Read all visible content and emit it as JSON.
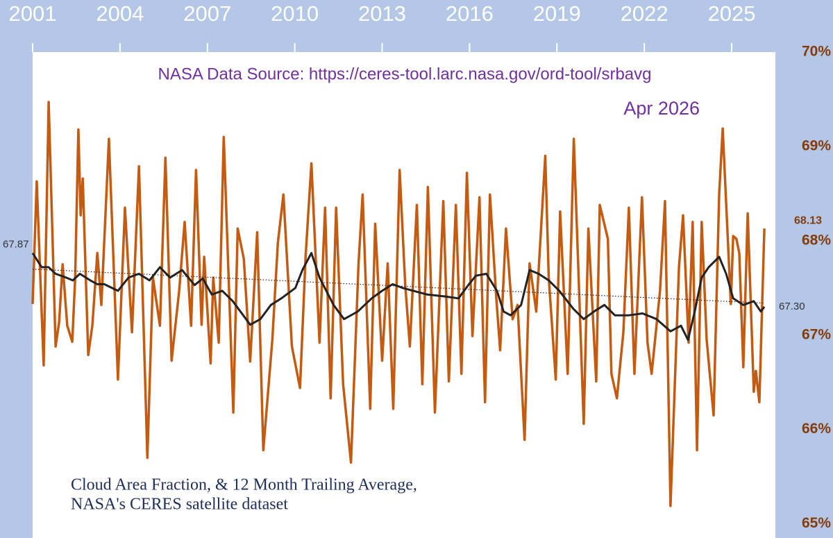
{
  "chart_data": {
    "type": "line",
    "title": "NASA Data Source: https://ceres-tool.larc.nasa.gov/ord-tool/srbavg",
    "subtitle": "Apr 2026",
    "caption": [
      "Cloud Area Fraction, & 12 Month Trailing Average,",
      "NASA's CERES satellite dataset"
    ],
    "xlim": [
      2001,
      2026.5
    ],
    "xticks": [
      2001,
      2004,
      2007,
      2010,
      2013,
      2016,
      2019,
      2022,
      2025
    ],
    "ylim": [
      64.85,
      70
    ],
    "yticks": [
      {
        "value": 65,
        "label": "65%"
      },
      {
        "value": 66,
        "label": "66%"
      },
      {
        "value": 67,
        "label": "67%"
      },
      {
        "value": 68,
        "label": "68%"
      },
      {
        "value": 69,
        "label": "69%"
      },
      {
        "value": 70,
        "label": "70%"
      }
    ],
    "series": [
      {
        "color": "#c55a11",
        "x": [
          2001.0,
          2001.14,
          2001.38,
          2001.55,
          2001.79,
          2001.91,
          2002.03,
          2002.19,
          2002.36,
          2002.46,
          2002.57,
          2002.65,
          2002.72,
          2002.91,
          2003.05,
          2003.22,
          2003.36,
          2003.62,
          2003.93,
          2004.17,
          2004.41,
          2004.65,
          2004.94,
          2005.13,
          2005.37,
          2005.56,
          2005.77,
          2006.03,
          2006.22,
          2006.44,
          2006.61,
          2006.8,
          2006.89,
          2007.11,
          2007.2,
          2007.39,
          2007.56,
          2007.89,
          2008.04,
          2008.25,
          2008.47,
          2008.71,
          2008.92,
          2009.23,
          2009.42,
          2009.61,
          2009.9,
          2010.18,
          2010.37,
          2010.57,
          2010.85,
          2011.04,
          2011.23,
          2011.42,
          2011.66,
          2011.93,
          2012.19,
          2012.33,
          2012.59,
          2012.76,
          2013.0,
          2013.19,
          2013.38,
          2013.6,
          2013.79,
          2013.95,
          2014.19,
          2014.38,
          2014.57,
          2014.81,
          2015.1,
          2015.29,
          2015.53,
          2015.72,
          2015.91,
          2016.1,
          2016.34,
          2016.53,
          2016.7,
          2016.91,
          2017.05,
          2017.25,
          2017.48,
          2017.65,
          2017.89,
          2018.06,
          2018.29,
          2018.6,
          2018.72,
          2018.96,
          2019.11,
          2019.37,
          2019.58,
          2019.92,
          2020.08,
          2020.35,
          2020.47,
          2020.75,
          2020.87,
          2021.06,
          2021.28,
          2021.47,
          2021.66,
          2021.92,
          2022.11,
          2022.25,
          2022.54,
          2022.71,
          2022.9,
          2023.19,
          2023.33,
          2023.52,
          2023.66,
          2023.81,
          2023.97,
          2024.14,
          2024.38,
          2024.57,
          2024.69,
          2024.97,
          2025.05,
          2025.16,
          2025.26,
          2025.4,
          2025.55,
          2025.76,
          2025.83,
          2025.95,
          2026.12
        ],
        "values": [
          67.33,
          68.63,
          66.68,
          69.47,
          66.88,
          67.14,
          67.75,
          67.1,
          66.93,
          67.61,
          69.18,
          68.27,
          68.66,
          66.79,
          67.1,
          67.87,
          67.32,
          69.08,
          66.53,
          68.35,
          67.03,
          68.79,
          65.7,
          67.61,
          67.1,
          68.88,
          66.73,
          67.47,
          68.2,
          67.1,
          68.75,
          67.11,
          67.83,
          66.7,
          67.61,
          66.92,
          69.1,
          66.18,
          68.13,
          67.81,
          66.72,
          68.09,
          65.78,
          66.95,
          67.98,
          68.49,
          66.88,
          66.44,
          67.83,
          68.82,
          66.92,
          68.35,
          66.33,
          68.35,
          66.48,
          65.65,
          67.76,
          68.49,
          66.22,
          68.18,
          66.73,
          67.76,
          66.22,
          68.75,
          67.54,
          66.88,
          68.38,
          66.48,
          68.57,
          66.18,
          68.42,
          66.51,
          68.38,
          66.59,
          68.72,
          66.99,
          68.46,
          66.29,
          68.49,
          67.43,
          66.84,
          68.13,
          67.17,
          67.32,
          65.89,
          67.76,
          67.25,
          68.9,
          67.61,
          66.53,
          68.31,
          66.59,
          69.08,
          66.06,
          68.13,
          66.51,
          68.38,
          68.02,
          66.59,
          66.33,
          67.03,
          68.35,
          66.59,
          68.46,
          66.92,
          66.59,
          67.47,
          68.42,
          65.19,
          67.72,
          68.27,
          66.92,
          68.2,
          65.78,
          68.2,
          66.95,
          66.15,
          68.49,
          69.19,
          67.33,
          68.05,
          68.02,
          67.87,
          66.66,
          68.29,
          66.4,
          66.62,
          66.29,
          68.13
        ]
      },
      {
        "color": "#222222",
        "x": [
          2001.0,
          2001.31,
          2001.55,
          2001.79,
          2002.15,
          2002.38,
          2002.62,
          2002.98,
          2003.22,
          2003.46,
          2003.93,
          2004.29,
          2004.65,
          2005.01,
          2005.37,
          2005.72,
          2006.13,
          2006.56,
          2006.84,
          2007.15,
          2007.51,
          2007.87,
          2008.23,
          2008.47,
          2008.82,
          2009.18,
          2009.54,
          2010.02,
          2010.26,
          2010.57,
          2010.85,
          2011.33,
          2011.69,
          2012.16,
          2012.64,
          2013.0,
          2013.36,
          2013.71,
          2014.07,
          2014.55,
          2015.15,
          2015.62,
          2015.98,
          2016.22,
          2016.58,
          2016.94,
          2017.17,
          2017.41,
          2017.77,
          2018.06,
          2018.37,
          2018.72,
          2019.08,
          2019.56,
          2019.92,
          2020.27,
          2020.63,
          2020.99,
          2021.47,
          2021.94,
          2022.42,
          2022.9,
          2023.26,
          2023.5,
          2023.73,
          2023.97,
          2024.21,
          2024.57,
          2024.81,
          2025.05,
          2025.4,
          2025.76,
          2026.0,
          2026.12
        ],
        "values": [
          67.87,
          67.72,
          67.72,
          67.65,
          67.61,
          67.58,
          67.65,
          67.58,
          67.54,
          67.54,
          67.47,
          67.61,
          67.65,
          67.58,
          67.72,
          67.61,
          67.69,
          67.53,
          67.6,
          67.43,
          67.47,
          67.36,
          67.21,
          67.11,
          67.17,
          67.32,
          67.39,
          67.5,
          67.69,
          67.87,
          67.61,
          67.32,
          67.17,
          67.25,
          67.39,
          67.47,
          67.54,
          67.5,
          67.47,
          67.43,
          67.41,
          67.39,
          67.54,
          67.63,
          67.65,
          67.47,
          67.25,
          67.21,
          67.32,
          67.69,
          67.65,
          67.58,
          67.47,
          67.28,
          67.17,
          67.25,
          67.32,
          67.21,
          67.21,
          67.23,
          67.17,
          67.04,
          67.1,
          66.95,
          67.25,
          67.61,
          67.72,
          67.83,
          67.65,
          67.39,
          67.32,
          67.36,
          67.25,
          67.3
        ]
      }
    ],
    "trendline": {
      "color": "#222222",
      "x": [
        2001,
        2026.12
      ],
      "values": [
        67.7,
        67.34
      ]
    },
    "annotations": [
      {
        "label": "67.87",
        "x": 2001,
        "value": 67.87
      },
      {
        "label": "68.13",
        "x": 2026.12,
        "value": 68.13
      },
      {
        "label": "67.30",
        "x": 2026.12,
        "value": 67.3
      }
    ]
  }
}
